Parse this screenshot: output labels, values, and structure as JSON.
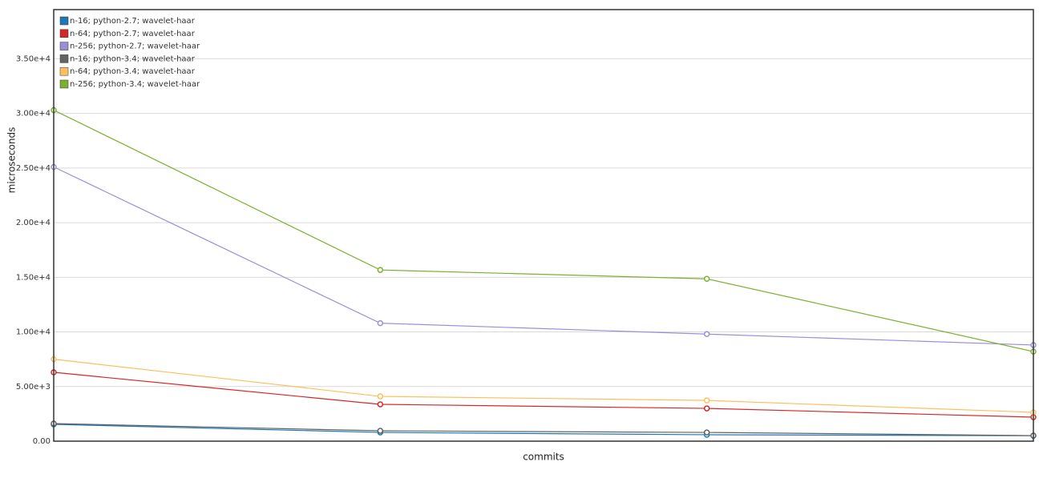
{
  "chart_data": {
    "type": "line",
    "xlabel": "commits",
    "ylabel": "microseconds",
    "categories": [
      null,
      null,
      null,
      null
    ],
    "series": [
      {
        "name": "n-16; python-2.7; wavelet-haar",
        "color": "#1f77b4",
        "values": [
          1540,
          800,
          590,
          500
        ]
      },
      {
        "name": "n-64; python-2.7; wavelet-haar",
        "color": "#d62728",
        "values": [
          6300,
          3370,
          3000,
          2200
        ]
      },
      {
        "name": "n-256; python-2.7; wavelet-haar",
        "color": "#9a8fd6",
        "values": [
          25100,
          10800,
          9800,
          8800
        ]
      },
      {
        "name": "n-16; python-3.4; wavelet-haar",
        "color": "#636363",
        "values": [
          1610,
          950,
          800,
          510
        ]
      },
      {
        "name": "n-64; python-3.4; wavelet-haar",
        "color": "#fdbf5f",
        "values": [
          7500,
          4100,
          3730,
          2640
        ]
      },
      {
        "name": "n-256; python-3.4; wavelet-haar",
        "color": "#7db030",
        "values": [
          30300,
          15670,
          14860,
          8200
        ]
      }
    ],
    "ylim": [
      0,
      39500
    ],
    "yticks": [
      {
        "value": 0,
        "label": "0.00"
      },
      {
        "value": 5000,
        "label": "5.00e+3"
      },
      {
        "value": 10000,
        "label": "1.00e+4"
      },
      {
        "value": 15000,
        "label": "1.50e+4"
      },
      {
        "value": 20000,
        "label": "2.00e+4"
      },
      {
        "value": 25000,
        "label": "2.50e+4"
      },
      {
        "value": 30000,
        "label": "3.00e+4"
      },
      {
        "value": 35000,
        "label": "3.50e+4"
      }
    ],
    "grid": true,
    "legend": "top-left"
  }
}
